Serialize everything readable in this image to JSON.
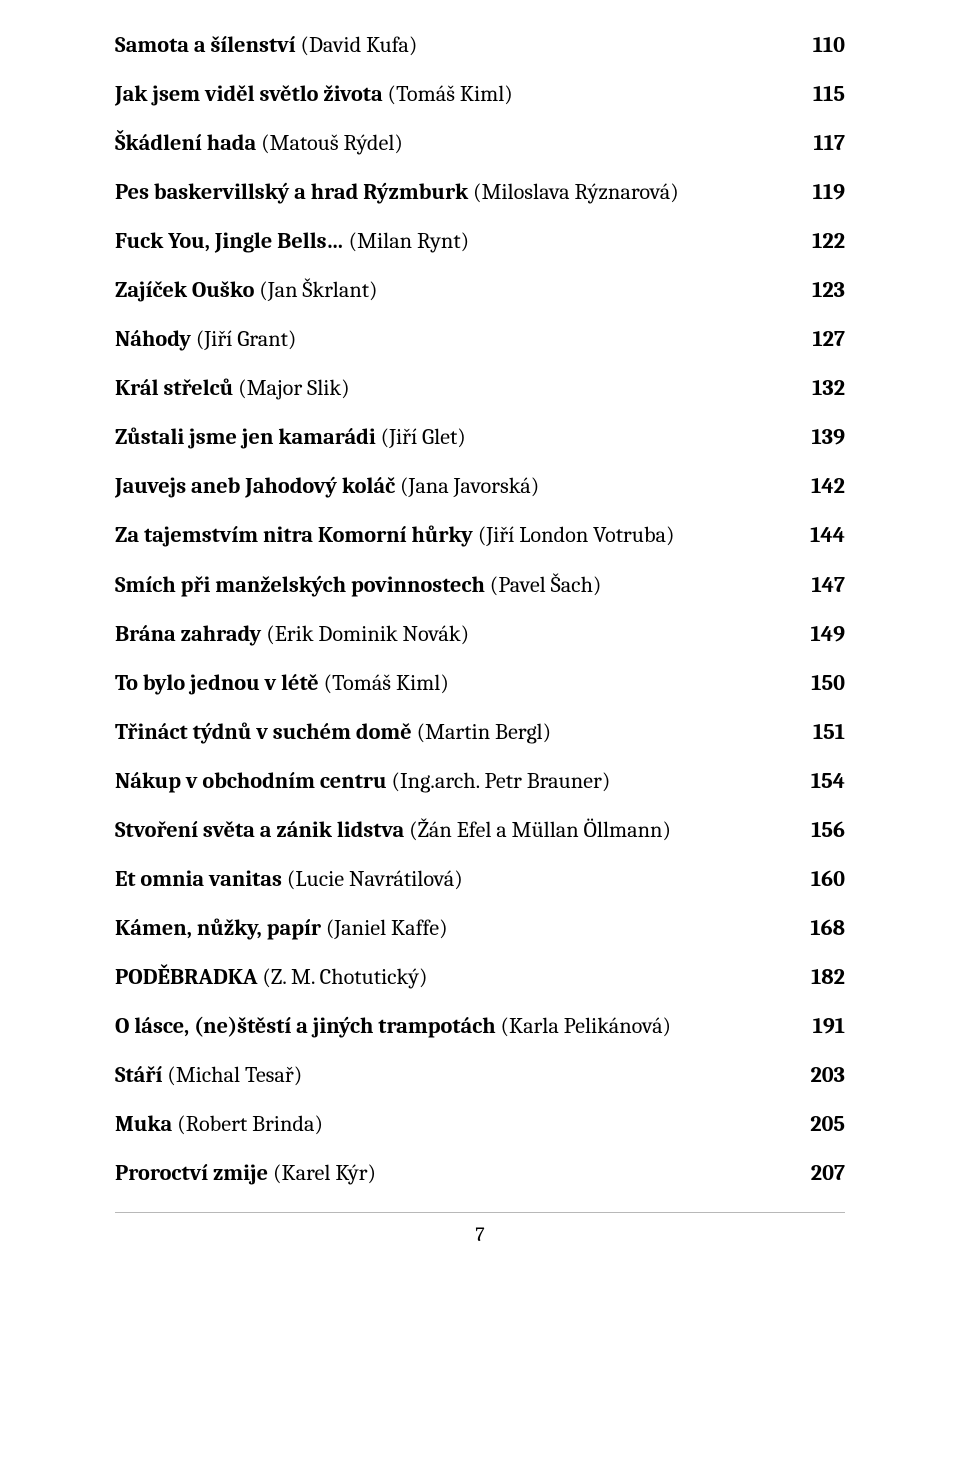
{
  "toc": [
    {
      "title": "Samota a šílenství",
      "author": "(David Kufa)",
      "page": "110"
    },
    {
      "title": "Jak jsem viděl světlo života",
      "author": "(Tomáš Kiml)",
      "page": "115"
    },
    {
      "title": "Škádlení hada",
      "author": "(Matouš Rýdel)",
      "page": "117"
    },
    {
      "title": "Pes baskervillský a hrad Rýzmburk",
      "author": "(Miloslava Rýznarová)",
      "page": "119"
    },
    {
      "title": "Fuck You, Jingle Bells…",
      "author": "(Milan Rynt)",
      "page": "122"
    },
    {
      "title": "Zajíček Ouško",
      "author": "(Jan Škrlant)",
      "page": "123"
    },
    {
      "title": "Náhody",
      "author": "(Jiří Grant)",
      "page": "127"
    },
    {
      "title": "Král střelců",
      "author": "(Major Slik)",
      "page": "132"
    },
    {
      "title": "Zůstali jsme jen kamarádi",
      "author": "(Jiří Glet)",
      "page": "139"
    },
    {
      "title": "Jauvejs aneb Jahodový koláč",
      "author": "(Jana Javorská)",
      "page": "142"
    },
    {
      "title": "Za tajemstvím nitra Komorní hůrky",
      "author": "(Jiří London Votruba)",
      "page": "144"
    },
    {
      "title": "Smích při manželských povinnostech",
      "author": "(Pavel Šach)",
      "page": "147"
    },
    {
      "title": "Brána zahrady",
      "author": "(Erik Dominik Novák)",
      "page": "149"
    },
    {
      "title": "To bylo jednou v létě",
      "author": "(Tomáš Kiml)",
      "page": "150"
    },
    {
      "title": "Třináct týdnů v suchém domě",
      "author": "(Martin Bergl)",
      "page": "151"
    },
    {
      "title": "Nákup v obchodním centru",
      "author": "(Ing.arch. Petr Brauner)",
      "page": "154"
    },
    {
      "title": "Stvoření světa a zánik lidstva",
      "author": "(Žán Efel a Müllan Öllmann)",
      "page": "156"
    },
    {
      "title": "Et omnia vanitas",
      "author": "(Lucie Navrátilová)",
      "page": "160"
    },
    {
      "title": "Kámen, nůžky, papír",
      "author": "(Janiel Kaffe)",
      "page": "168"
    },
    {
      "title": "PODĚBRADKA",
      "author": "(Z. M. Chotutický)",
      "page": "182"
    },
    {
      "title": "O lásce, (ne)štěstí a jiných trampotách",
      "author": "(Karla Pelikánová)",
      "page": "191"
    },
    {
      "title": "Stáří",
      "author": "(Michal Tesař)",
      "page": "203"
    },
    {
      "title": "Muka",
      "author": "(Robert Brinda)",
      "page": "205"
    },
    {
      "title": "Proroctví zmije",
      "author": "(Karel Kýr)",
      "page": "207"
    }
  ],
  "page_number": "7"
}
